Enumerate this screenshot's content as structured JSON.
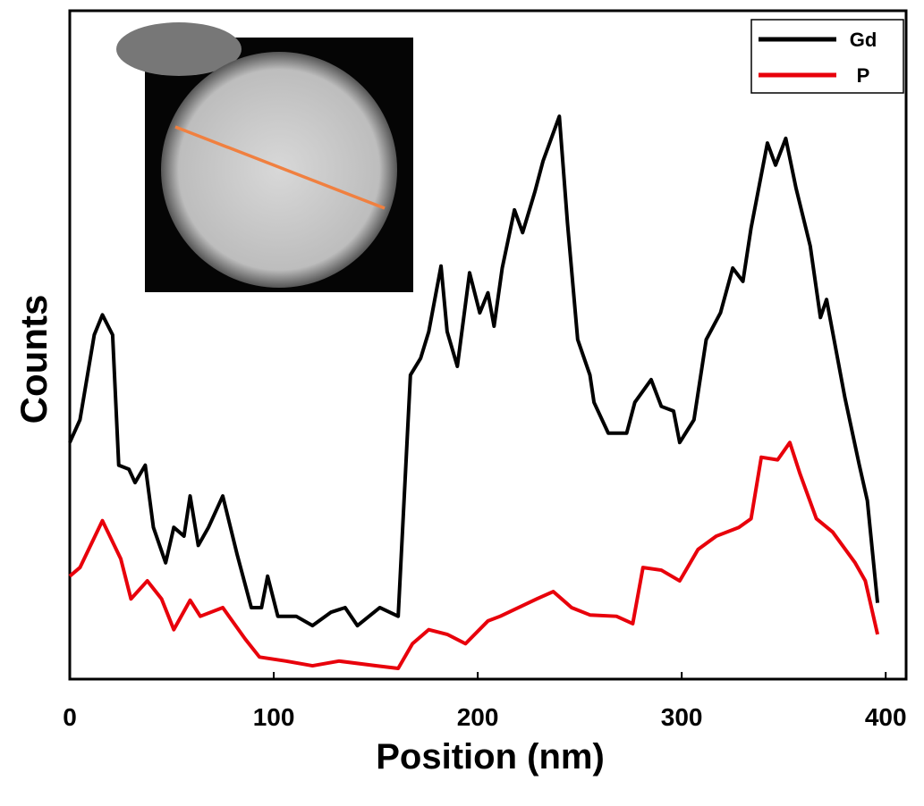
{
  "chart_data": {
    "type": "line",
    "x_label": "Position (nm)",
    "y_label": "Counts",
    "xlim": [
      0,
      410
    ],
    "xticks": [
      0,
      100,
      200,
      300,
      400
    ],
    "ylim": [
      0,
      100
    ],
    "grid": false,
    "legend": "upper right",
    "series": [
      {
        "name": "Gd",
        "color": "#000000",
        "x": [
          0,
          5,
          12,
          16,
          21,
          24,
          29,
          32,
          37,
          41,
          47,
          51,
          56,
          59,
          63,
          68,
          75,
          82,
          89,
          94,
          97,
          102,
          111,
          119,
          128,
          135,
          141,
          152,
          161,
          167,
          172,
          176,
          182,
          185,
          190,
          196,
          201,
          205,
          208,
          212,
          218,
          222,
          228,
          232,
          240,
          244,
          249,
          255,
          257,
          264,
          273,
          277,
          285,
          290,
          296,
          299,
          306,
          312,
          319,
          325,
          330,
          334,
          342,
          346,
          351,
          356,
          363,
          368,
          371,
          380,
          387,
          391,
          396
        ],
        "values": [
          35.4,
          38.8,
          51.5,
          54.5,
          51.5,
          32,
          31.4,
          29.4,
          32,
          22.7,
          17.4,
          22.7,
          21.4,
          27.4,
          20,
          22.7,
          27.4,
          18.7,
          10.7,
          10.7,
          15.4,
          9.4,
          9.4,
          8,
          10,
          10.7,
          8,
          10.7,
          9.4,
          45.5,
          48,
          52,
          61.8,
          52,
          46.8,
          60.8,
          54.8,
          57.8,
          52.8,
          61.5,
          70.2,
          66.8,
          72.9,
          77.5,
          84.2,
          68.2,
          50.8,
          45.5,
          41.4,
          36.8,
          36.8,
          41.4,
          44.8,
          40.8,
          40.1,
          35.4,
          38.8,
          50.8,
          54.8,
          61.5,
          59.5,
          67.5,
          80.2,
          76.9,
          80.9,
          73.5,
          64.8,
          54.1,
          56.8,
          42.1,
          32.1,
          26.7,
          11.4
        ]
      },
      {
        "name": "P",
        "color": "#e8000b",
        "x": [
          0,
          5,
          16,
          25,
          30,
          38,
          45,
          51,
          59,
          64,
          75,
          86,
          93,
          106,
          119,
          132,
          150,
          161,
          168,
          176,
          185,
          194,
          205,
          211,
          220,
          229,
          237,
          246,
          255,
          268,
          276,
          281,
          290,
          299,
          308,
          317,
          328,
          334,
          339,
          347,
          353,
          358,
          366,
          374,
          385,
          390,
          396
        ],
        "values": [
          15.4,
          16.7,
          23.7,
          18,
          12,
          14.7,
          12,
          7.4,
          11.8,
          9.4,
          10.7,
          6,
          3.3,
          2.7,
          2,
          2.7,
          2,
          1.6,
          5.3,
          7.4,
          6.7,
          5.3,
          8.7,
          9.4,
          10.7,
          12,
          13.1,
          10.7,
          9.6,
          9.4,
          8.3,
          16.7,
          16.3,
          14.7,
          19.4,
          21.4,
          22.7,
          24,
          33.2,
          32.8,
          35.4,
          30.7,
          24,
          22,
          17.4,
          14.7,
          6.7
        ]
      }
    ]
  }
}
